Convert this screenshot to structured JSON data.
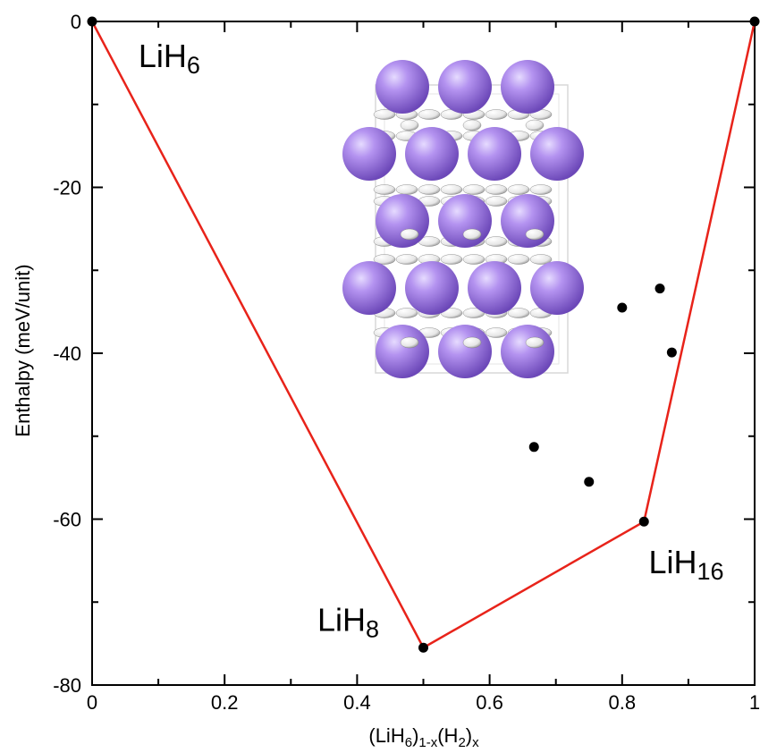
{
  "chart_data": {
    "type": "scatter",
    "xlabel": {
      "base": "(LiH",
      "sub1": "6",
      "mid1": ")",
      "sub2": "1-x",
      "mid2": "(H",
      "sub3": "2",
      "mid3": ")",
      "sub4": "x"
    },
    "ylabel": "Enthalpy (meV/unit)",
    "xlim": [
      0,
      1
    ],
    "ylim": [
      -80,
      0
    ],
    "x_ticks": [
      0,
      0.2,
      0.4,
      0.6,
      0.8,
      1
    ],
    "x_tick_labels": [
      "0",
      "0.2",
      "0.4",
      "0.6",
      "0.8",
      "1"
    ],
    "y_ticks": [
      0,
      -20,
      -40,
      -60,
      -80
    ],
    "y_tick_labels": [
      "0",
      "-20",
      "-40",
      "-60",
      "-80"
    ],
    "grid": false,
    "series": [
      {
        "type": "line",
        "color": "#e8231a",
        "x": [
          0,
          0.5,
          0.833,
          1
        ],
        "y": [
          0,
          -75.5,
          -60.3,
          0
        ]
      },
      {
        "type": "scatter",
        "color": "#000000",
        "x": [
          0,
          0.5,
          0.667,
          0.75,
          0.8,
          0.833,
          0.857,
          0.875,
          1
        ],
        "y": [
          0,
          -75.5,
          -51.3,
          -55.5,
          -34.5,
          -60.3,
          -32.2,
          -39.9,
          0
        ]
      }
    ],
    "annotations": [
      {
        "base": "LiH",
        "sub": "6",
        "x": 0.07,
        "y": -5.5
      },
      {
        "base": "LiH",
        "sub": "8",
        "x": 0.34,
        "y": -73.5
      },
      {
        "base": "LiH",
        "sub": "16",
        "x": 0.84,
        "y": -66.5
      }
    ],
    "inset": {
      "kind": "crystal-structure-image",
      "atom_color": "#a27fe0",
      "bond_color": "#ffffff"
    }
  }
}
